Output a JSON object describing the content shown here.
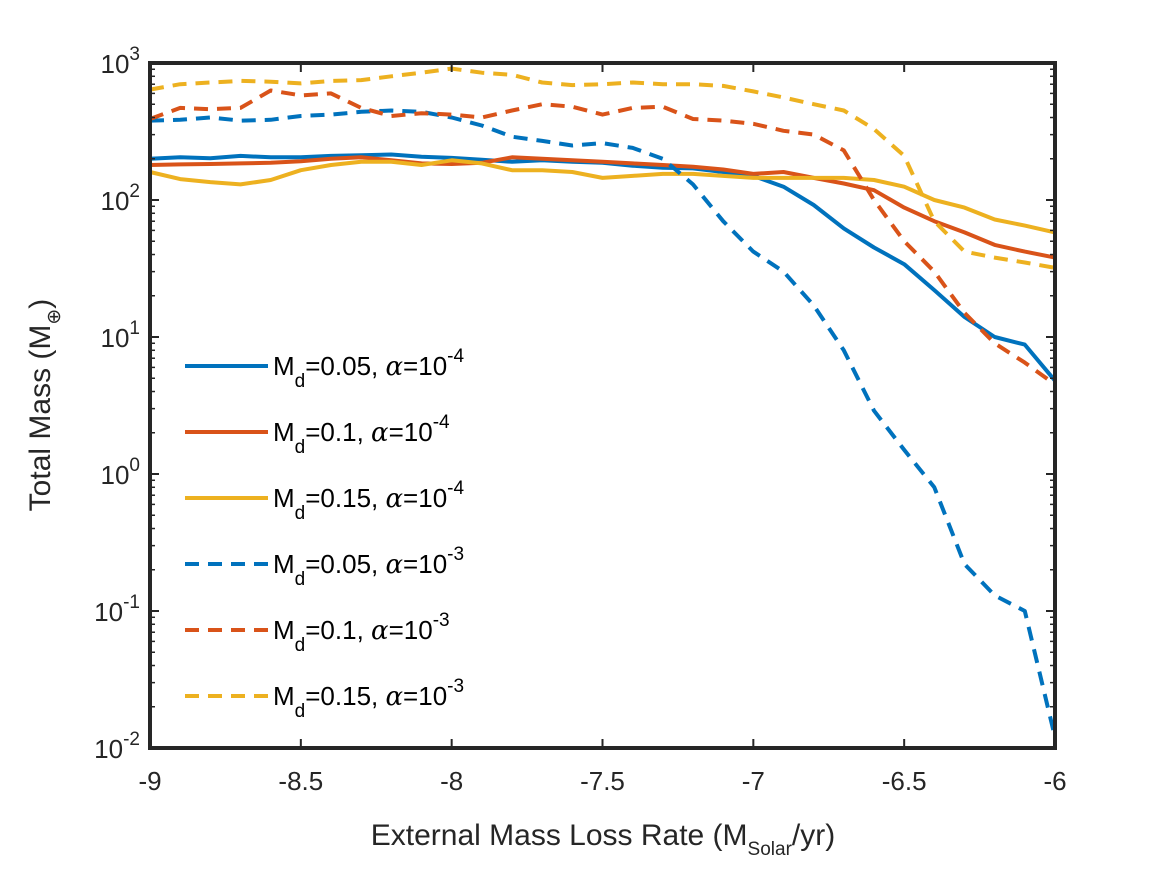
{
  "chart_data": {
    "type": "line",
    "title": "",
    "xlabel": "External Mass Loss Rate (M",
    "xlabel_sub": "Solar",
    "xlabel_suffix": "/yr)",
    "ylabel": "Total Mass (M",
    "ylabel_sub": "⊕",
    "ylabel_suffix": ")",
    "yscale": "log",
    "xlim": [
      -9,
      -6
    ],
    "ylim": [
      0.01,
      1000
    ],
    "x_ticks": [
      -9,
      -8.5,
      -8,
      -7.5,
      -7,
      -6.5,
      -6
    ],
    "x_tick_labels": [
      "-9",
      "-8.5",
      "-8",
      "-7.5",
      "-7",
      "-6.5",
      "-6"
    ],
    "y_ticks": [
      {
        "value": 0.01,
        "base": "10",
        "exp": "-2"
      },
      {
        "value": 0.1,
        "base": "10",
        "exp": "-1"
      },
      {
        "value": 1,
        "base": "10",
        "exp": "0"
      },
      {
        "value": 10,
        "base": "10",
        "exp": "1"
      },
      {
        "value": 100,
        "base": "10",
        "exp": "2"
      },
      {
        "value": 1000,
        "base": "10",
        "exp": "3"
      }
    ],
    "x": [
      -9.0,
      -8.9,
      -8.8,
      -8.7,
      -8.6,
      -8.5,
      -8.4,
      -8.3,
      -8.2,
      -8.1,
      -8.0,
      -7.9,
      -7.8,
      -7.7,
      -7.6,
      -7.5,
      -7.4,
      -7.3,
      -7.2,
      -7.1,
      -7.0,
      -6.9,
      -6.8,
      -6.7,
      -6.6,
      -6.5,
      -6.4,
      -6.3,
      -6.2,
      -6.1,
      -6.0
    ],
    "legend_location": "south-west",
    "series": [
      {
        "name": "Md=0.05, α=10^-4",
        "label_main": "M",
        "label_sub": "d",
        "label_mid": "=0.05, ",
        "label_alpha": "α",
        "label_eq": "=10",
        "label_exp": "-4",
        "color": "#0072BD",
        "style": "solid",
        "values": [
          200,
          205,
          202,
          210,
          205,
          205,
          210,
          212,
          215,
          207,
          203,
          197,
          190,
          195,
          190,
          187,
          178,
          172,
          170,
          160,
          150,
          125,
          92,
          62,
          45,
          34,
          22,
          14,
          10,
          8.8,
          4.8
        ]
      },
      {
        "name": "Md=0.1, α=10^-4",
        "label_main": "M",
        "label_sub": "d",
        "label_mid": "=0.1, ",
        "label_alpha": "α",
        "label_eq": "=10",
        "label_exp": "-4",
        "color": "#D95319",
        "style": "solid",
        "values": [
          180,
          182,
          183,
          185,
          187,
          192,
          200,
          205,
          195,
          185,
          183,
          187,
          205,
          200,
          195,
          190,
          185,
          180,
          175,
          167,
          155,
          160,
          145,
          132,
          118,
          88,
          70,
          58,
          47,
          42,
          38
        ]
      },
      {
        "name": "Md=0.15, α=10^-4",
        "label_main": "M",
        "label_sub": "d",
        "label_mid": "=0.15, ",
        "label_alpha": "α",
        "label_eq": "=10",
        "label_exp": "-4",
        "color": "#EDB120",
        "style": "solid",
        "values": [
          160,
          142,
          135,
          130,
          140,
          165,
          180,
          190,
          190,
          180,
          195,
          185,
          165,
          165,
          160,
          145,
          150,
          155,
          155,
          150,
          145,
          145,
          145,
          145,
          140,
          125,
          100,
          88,
          72,
          65,
          58
        ]
      },
      {
        "name": "Md=0.05, α=10^-3",
        "label_main": "M",
        "label_sub": "d",
        "label_mid": "=0.05, ",
        "label_alpha": "α",
        "label_eq": "=10",
        "label_exp": "-3",
        "color": "#0072BD",
        "style": "dashed",
        "values": [
          380,
          385,
          400,
          380,
          385,
          410,
          420,
          440,
          450,
          440,
          400,
          350,
          290,
          270,
          250,
          260,
          240,
          200,
          130,
          70,
          42,
          30,
          17,
          8,
          2.9,
          1.5,
          0.8,
          0.22,
          0.13,
          0.1,
          0.012
        ]
      },
      {
        "name": "Md=0.1, α=10^-3",
        "label_main": "M",
        "label_sub": "d",
        "label_mid": "=0.1, ",
        "label_alpha": "α",
        "label_eq": "=10",
        "label_exp": "-3",
        "color": "#D95319",
        "style": "dashed",
        "values": [
          390,
          470,
          460,
          470,
          630,
          580,
          600,
          470,
          410,
          430,
          420,
          400,
          450,
          500,
          480,
          420,
          470,
          480,
          390,
          380,
          360,
          320,
          300,
          230,
          100,
          50,
          30,
          15,
          9,
          6.5,
          4.5
        ]
      },
      {
        "name": "Md=0.15, α=10^-3",
        "label_main": "M",
        "label_sub": "d",
        "label_mid": "=0.15, ",
        "label_alpha": "α",
        "label_eq": "=10",
        "label_exp": "-3",
        "color": "#EDB120",
        "style": "dashed",
        "values": [
          640,
          700,
          720,
          740,
          730,
          710,
          740,
          750,
          800,
          850,
          910,
          850,
          820,
          720,
          690,
          700,
          720,
          700,
          700,
          680,
          620,
          560,
          500,
          450,
          330,
          210,
          70,
          42,
          38,
          35,
          32
        ]
      }
    ]
  }
}
